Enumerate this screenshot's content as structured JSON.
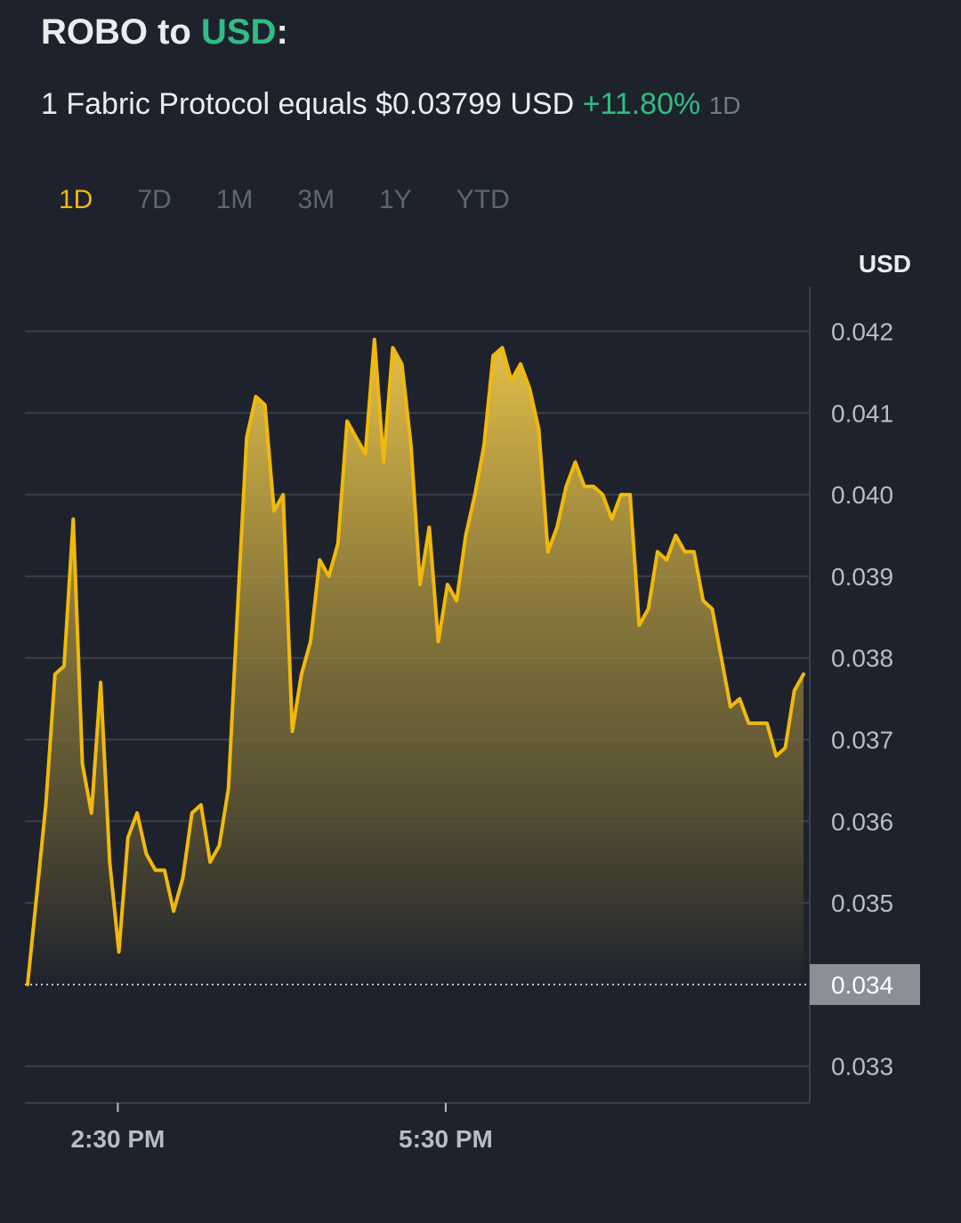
{
  "header": {
    "base": "ROBO",
    "connector": " to ",
    "quote": "USD",
    "colon": ":"
  },
  "summary": {
    "prefix": "1 Fabric Protocol equals $0.03799 USD",
    "change": "+11.80%",
    "period": "1D"
  },
  "tabs": [
    {
      "label": "1D",
      "active": true
    },
    {
      "label": "7D",
      "active": false
    },
    {
      "label": "1M",
      "active": false
    },
    {
      "label": "3M",
      "active": false
    },
    {
      "label": "1Y",
      "active": false
    },
    {
      "label": "YTD",
      "active": false
    }
  ],
  "colors": {
    "background": "#1e222c",
    "line": "#f0b90b",
    "positive": "#2ebd85",
    "grid": "#3a3f4b"
  },
  "chart_data": {
    "type": "area",
    "unit_label": "USD",
    "y_ticks": [
      "0.042",
      "0.041",
      "0.040",
      "0.039",
      "0.038",
      "0.037",
      "0.036",
      "0.035",
      "0.034",
      "0.033"
    ],
    "ylim": [
      0.03255,
      0.04255
    ],
    "x_tick_labels": [
      {
        "label": "2:30 PM",
        "hour": 14.5
      },
      {
        "label": "5:30 PM",
        "hour": 17.5
      }
    ],
    "xlim": [
      13.65,
      20.83
    ],
    "current_price_label": "0.034",
    "current_price_value": 0.034,
    "series": [
      {
        "values": [
          0.034,
          0.0351,
          0.0362,
          0.0378,
          0.0379,
          0.0397,
          0.0367,
          0.0361,
          0.0377,
          0.0355,
          0.0344,
          0.0358,
          0.0361,
          0.0356,
          0.0354,
          0.0354,
          0.0349,
          0.0353,
          0.0361,
          0.0362,
          0.0355,
          0.0357,
          0.0364,
          0.0386,
          0.0407,
          0.0412,
          0.0411,
          0.0398,
          0.04,
          0.0371,
          0.0378,
          0.0382,
          0.0392,
          0.039,
          0.0394,
          0.0409,
          0.0407,
          0.0405,
          0.0419,
          0.0404,
          0.0418,
          0.0416,
          0.0406,
          0.0389,
          0.0396,
          0.0382,
          0.0389,
          0.0387,
          0.0395,
          0.04,
          0.0406,
          0.0417,
          0.0418,
          0.0414,
          0.0416,
          0.0413,
          0.0408,
          0.0393,
          0.0396,
          0.0401,
          0.0404,
          0.0401,
          0.0401,
          0.04,
          0.0397,
          0.04,
          0.04,
          0.0384,
          0.0386,
          0.0393,
          0.0392,
          0.0395,
          0.0393,
          0.0393,
          0.0387,
          0.0386,
          0.038,
          0.0374,
          0.0375,
          0.0372,
          0.0372,
          0.0372,
          0.0368,
          0.0369,
          0.0376,
          0.0378
        ]
      }
    ]
  }
}
